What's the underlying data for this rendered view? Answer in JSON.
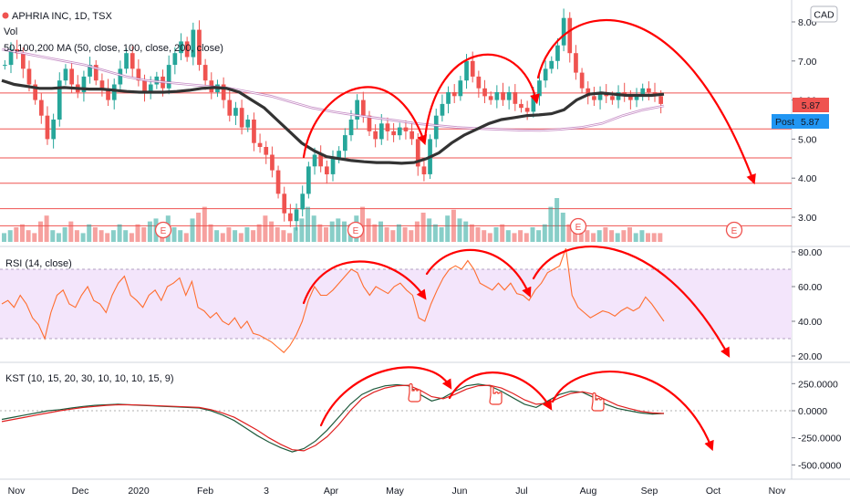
{
  "chart_data": [
    {
      "type": "candlestick",
      "panel": "price",
      "title": "APHRIA INC, 1D, TSX",
      "volume_label": "Vol",
      "ma_label": "50,100,200 MA (50, close, 100, close, 200, close)",
      "currency_badge": "CAD",
      "price_flag": "5.87",
      "post_label": "Post",
      "post_value": "5.87",
      "earnings_marker": "E",
      "y_ticks": [
        "8.00",
        "7.00",
        "6.00",
        "5.00",
        "4.00",
        "3.00"
      ],
      "ylim": [
        2.5,
        8.3
      ],
      "price_path": [
        6.9,
        7.3,
        7.2,
        6.8,
        6.4,
        6.0,
        5.6,
        5.0,
        5.5,
        6.5,
        6.8,
        6.4,
        6.2,
        6.6,
        6.9,
        6.5,
        6.3,
        6.0,
        6.4,
        6.8,
        7.2,
        6.8,
        6.5,
        6.2,
        6.4,
        6.6,
        6.3,
        6.9,
        7.2,
        7.5,
        7.1,
        7.8,
        6.9,
        6.5,
        6.2,
        6.4,
        6.0,
        5.6,
        5.8,
        5.3,
        5.5,
        4.9,
        4.8,
        4.6,
        4.2,
        3.6,
        3.1,
        2.9,
        3.2,
        3.6,
        4.3,
        4.6,
        4.3,
        4.1,
        4.5,
        4.7,
        5.1,
        5.5,
        6.0,
        5.6,
        5.2,
        5.0,
        5.4,
        5.2,
        5.1,
        5.3,
        5.2,
        5.0,
        4.3,
        4.1,
        5.0,
        5.6,
        5.9,
        6.2,
        6.1,
        6.5,
        7.0,
        6.6,
        6.3,
        6.1,
        6.0,
        6.2,
        6.0,
        6.2,
        5.9,
        5.8,
        5.7,
        6.1,
        6.5,
        6.8,
        7.0,
        7.4,
        8.1,
        7.2,
        6.7,
        6.3,
        6.1,
        6.0,
        6.2,
        6.1,
        6.0,
        6.2,
        6.1,
        6.0,
        6.1,
        6.3,
        6.2,
        6.1,
        5.9
      ],
      "ma_black": [
        6.5,
        6.4,
        6.35,
        6.3,
        6.3,
        6.32,
        6.3,
        6.28,
        6.28,
        6.25,
        6.22,
        6.2,
        6.2,
        6.2,
        6.22,
        6.25,
        6.3,
        6.32,
        6.3,
        6.2,
        6.0,
        5.8,
        5.5,
        5.2,
        4.9,
        4.7,
        4.55,
        4.5,
        4.45,
        4.42,
        4.4,
        4.4,
        4.38,
        4.4,
        4.5,
        4.65,
        4.9,
        5.1,
        5.25,
        5.4,
        5.5,
        5.55,
        5.6,
        5.62,
        5.65,
        5.75,
        6.0,
        6.15,
        6.18,
        6.15,
        6.12,
        6.12,
        6.12,
        6.15
      ],
      "ma_purple": [
        7.3,
        7.2,
        7.1,
        7.0,
        6.9,
        6.75,
        6.6,
        6.5,
        6.45,
        6.4,
        6.35,
        6.3,
        6.2,
        6.1,
        5.95,
        5.8,
        5.7,
        5.62,
        5.55,
        5.48,
        5.4,
        5.35,
        5.3,
        5.27,
        5.25,
        5.23,
        5.22,
        5.25,
        5.3,
        5.4,
        5.6,
        5.75,
        5.85
      ],
      "volume": [
        3,
        4,
        5,
        6,
        4,
        3,
        7,
        9,
        4,
        3,
        5,
        7,
        4,
        3,
        6,
        5,
        4,
        3,
        4,
        6,
        4,
        3,
        6,
        5,
        7,
        8,
        6,
        9,
        5,
        4,
        3,
        8,
        10,
        12,
        6,
        4,
        3,
        5,
        4,
        3,
        5,
        4,
        6,
        9,
        7,
        5,
        4,
        3,
        5,
        8,
        12,
        9,
        6,
        5,
        7,
        8,
        7,
        6,
        9,
        12,
        8,
        6,
        7,
        5,
        4,
        6,
        5,
        4,
        7,
        10,
        8,
        6,
        5,
        9,
        11,
        8,
        7,
        6,
        5,
        4,
        3,
        5,
        6,
        4,
        3,
        4,
        3,
        5,
        4,
        6,
        12,
        15,
        10,
        6,
        4,
        3,
        4,
        3,
        4,
        5,
        4,
        3,
        4,
        5,
        3,
        4,
        3,
        3,
        3
      ]
    },
    {
      "type": "line",
      "panel": "rsi",
      "title": "RSI (14, close)",
      "y_ticks": [
        "80.00",
        "60.00",
        "40.00",
        "20.00"
      ],
      "ylim": [
        18,
        84
      ],
      "band": [
        30,
        70
      ],
      "series": [
        {
          "values": [
            50,
            52,
            48,
            55,
            50,
            42,
            38,
            30,
            45,
            55,
            58,
            50,
            48,
            55,
            60,
            52,
            50,
            45,
            55,
            62,
            66,
            55,
            52,
            48,
            55,
            58,
            52,
            60,
            62,
            65,
            55,
            63,
            48,
            46,
            42,
            45,
            40,
            38,
            42,
            36,
            40,
            33,
            32,
            30,
            28,
            25,
            22,
            26,
            32,
            40,
            52,
            60,
            55,
            55,
            58,
            62,
            66,
            70,
            68,
            60,
            55,
            60,
            58,
            56,
            60,
            62,
            58,
            55,
            42,
            40,
            50,
            58,
            65,
            70,
            72,
            70,
            75,
            70,
            62,
            60,
            58,
            62,
            58,
            62,
            56,
            55,
            52,
            58,
            62,
            68,
            70,
            72,
            82,
            55,
            48,
            45,
            42,
            44,
            46,
            45,
            43,
            46,
            48,
            46,
            48,
            54,
            50,
            45,
            40
          ]
        }
      ]
    },
    {
      "type": "line",
      "panel": "kst",
      "title": "KST (10, 15, 20, 30, 10, 10, 10, 15, 9)",
      "y_ticks": [
        "250.0000",
        "0.0000",
        "-250.0000",
        "-500.0000"
      ],
      "ylim": [
        -560,
        360
      ],
      "series": [
        {
          "values": [
            -80,
            -60,
            -40,
            -20,
            0,
            10,
            25,
            40,
            50,
            55,
            60,
            55,
            50,
            45,
            40,
            35,
            30,
            25,
            0,
            -40,
            -90,
            -160,
            -230,
            -290,
            -340,
            -380,
            -350,
            -280,
            -180,
            -60,
            60,
            150,
            200,
            230,
            240,
            230,
            150,
            90,
            120,
            180,
            230,
            245,
            230,
            180,
            120,
            60,
            30,
            90,
            150,
            180,
            170,
            120,
            60,
            20,
            0,
            -20,
            -30,
            -25
          ]
        },
        {
          "values": [
            -100,
            -80,
            -60,
            -40,
            -20,
            0,
            15,
            30,
            40,
            50,
            55,
            55,
            52,
            48,
            44,
            40,
            35,
            30,
            10,
            -20,
            -60,
            -120,
            -180,
            -250,
            -310,
            -360,
            -370,
            -320,
            -240,
            -130,
            0,
            110,
            170,
            210,
            230,
            235,
            190,
            130,
            110,
            150,
            200,
            230,
            235,
            210,
            160,
            100,
            60,
            70,
            120,
            160,
            175,
            150,
            100,
            50,
            20,
            -5,
            -20,
            -25
          ]
        }
      ]
    }
  ],
  "x_axis": {
    "labels": [
      "Nov",
      "Dec",
      "2020",
      "Feb",
      "3",
      "Apr",
      "May",
      "Jun",
      "Jul",
      "Aug",
      "Sep",
      "Oct",
      "Nov"
    ]
  },
  "colors": {
    "up": "#26a69a",
    "down": "#ef5350",
    "ma_black": "#333333",
    "ma_purple": "#b46bb4",
    "rsi_line": "#ff6d2e",
    "rsi_band": "#f3e5fb",
    "kst": "#1e5a3c",
    "kst_signal": "#e02020",
    "drawing": "#ff0000",
    "flag": "#ef5350",
    "post": "#2196f3"
  }
}
